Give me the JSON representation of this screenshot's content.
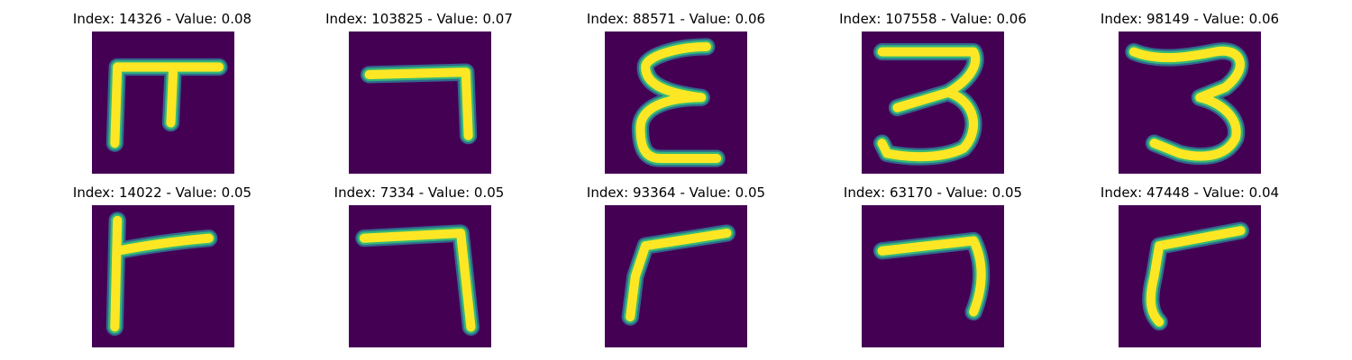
{
  "colors": {
    "background": "#440154",
    "stroke": "#fde725",
    "stroke_edge": "#35b779",
    "stroke_halo": "#31688e"
  },
  "panels": [
    {
      "title": "Index: 14326 - Value: 0.08"
    },
    {
      "title": "Index: 103825 - Value: 0.07"
    },
    {
      "title": "Index: 88571 - Value: 0.06"
    },
    {
      "title": "Index: 107558 - Value: 0.06"
    },
    {
      "title": "Index: 98149 - Value: 0.06"
    },
    {
      "title": "Index: 14022 - Value: 0.05"
    },
    {
      "title": "Index: 7334 - Value: 0.05"
    },
    {
      "title": "Index: 93364 - Value: 0.05"
    },
    {
      "title": "Index: 63170 - Value: 0.05"
    },
    {
      "title": "Index: 47448 - Value: 0.04"
    }
  ]
}
